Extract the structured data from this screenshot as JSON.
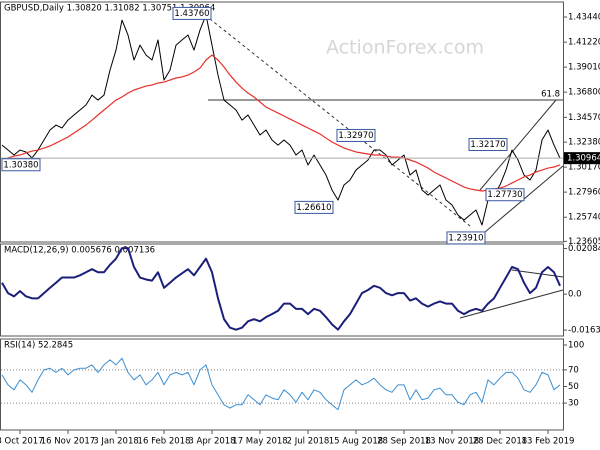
{
  "chart_data": [
    {
      "type": "line",
      "title": "GBPUSD,Daily 1.30820 1.31082 1.30751 1.30964",
      "watermark": "ActionForex.com",
      "ylim": [
        1.2355,
        1.4477
      ],
      "yticks": [
        {
          "value": 1.4344,
          "label": "1.43440"
        },
        {
          "value": 1.4122,
          "label": "1.41220"
        },
        {
          "value": 1.3901,
          "label": "1.39010"
        },
        {
          "value": 1.368,
          "label": "1.36800"
        },
        {
          "value": 1.3457,
          "label": "1.34570"
        },
        {
          "value": 1.3238,
          "label": "1.32380"
        },
        {
          "value": 1.3017,
          "label": "1.30170"
        },
        {
          "value": 1.2796,
          "label": "1.27960"
        },
        {
          "value": 1.2574,
          "label": "1.25740"
        },
        {
          "value": 1.23605,
          "label": "1.23605"
        }
      ],
      "last_price": {
        "value": 1.30964,
        "label": "1.30964"
      },
      "annotations": [
        {
          "value": 1.4376,
          "label": "1.43760"
        },
        {
          "value": 1.3297,
          "label": "1.32970"
        },
        {
          "value": 1.2661,
          "label": "1.26610"
        },
        {
          "value": 1.2391,
          "label": "1.23910"
        },
        {
          "value": 1.3217,
          "label": "1.32170"
        },
        {
          "value": 1.2773,
          "label": "1.27730"
        },
        {
          "value": 1.3038,
          "label": "1.30380"
        }
      ],
      "fib_label": 61.8,
      "series": [
        {
          "color": "#000000",
          "width": 1,
          "values": [
            1.3212,
            1.3168,
            1.3124,
            1.3168,
            1.3151,
            1.3098,
            1.3168,
            1.3257,
            1.3345,
            1.3389,
            1.3363,
            1.3433,
            1.3478,
            1.3522,
            1.3566,
            1.3654,
            1.361,
            1.3654,
            1.3875,
            1.4052,
            1.4317,
            1.4185,
            1.3964,
            1.4096,
            1.4008,
            1.3964,
            1.4141,
            1.3787,
            1.3875,
            1.4096,
            1.4141,
            1.4185,
            1.4052,
            1.4229,
            1.4362,
            1.4096,
            1.3831,
            1.361,
            1.3566,
            1.3522,
            1.3433,
            1.3478,
            1.3389,
            1.3301,
            1.3345,
            1.3257,
            1.3212,
            1.3257,
            1.3212,
            1.3124,
            1.3168,
            1.3036,
            1.3124,
            1.3036,
            1.2947,
            1.2815,
            1.2726,
            1.2859,
            1.2903,
            1.2991,
            1.3036,
            1.308,
            1.3168,
            1.3168,
            1.3124,
            1.3036,
            1.308,
            1.3124,
            1.2947,
            1.2991,
            1.2815,
            1.277,
            1.2815,
            1.2859,
            1.2726,
            1.2682,
            1.2594,
            1.2549,
            1.2594,
            1.2638,
            1.2505,
            1.2726,
            1.277,
            1.2859,
            1.2991,
            1.3168,
            1.308,
            1.2947,
            1.2903,
            1.2991,
            1.3257,
            1.3345,
            1.3212,
            1.3096
          ]
        },
        {
          "color": "#e8302c",
          "width": 1.2,
          "values": [
            1.308,
            1.3098,
            1.3115,
            1.3124,
            1.3142,
            1.3159,
            1.3168,
            1.3186,
            1.3204,
            1.323,
            1.3257,
            1.3283,
            1.3319,
            1.3354,
            1.3389,
            1.3433,
            1.3478,
            1.3522,
            1.3566,
            1.361,
            1.3637,
            1.3672,
            1.3699,
            1.3716,
            1.3734,
            1.3743,
            1.3761,
            1.3769,
            1.3787,
            1.3805,
            1.3814,
            1.3831,
            1.3858,
            1.3893,
            1.3964,
            1.4008,
            1.3964,
            1.3902,
            1.3831,
            1.3769,
            1.3716,
            1.3672,
            1.3637,
            1.3593,
            1.3548,
            1.3522,
            1.3495,
            1.3469,
            1.3442,
            1.3416,
            1.3389,
            1.3363,
            1.3336,
            1.331,
            1.3274,
            1.3239,
            1.3212,
            1.3186,
            1.3168,
            1.3151,
            1.3142,
            1.3133,
            1.3124,
            1.3124,
            1.3115,
            1.3106,
            1.3106,
            1.3098,
            1.308,
            1.3062,
            1.3036,
            1.3009,
            1.2974,
            1.2947,
            1.2921,
            1.2894,
            1.2868,
            1.2841,
            1.2824,
            1.2815,
            1.2806,
            1.2815,
            1.2824,
            1.2832,
            1.285,
            1.2877,
            1.2903,
            1.293,
            1.2947,
            1.2974,
            1.2991,
            1.3009,
            1.3018,
            1.3036
          ]
        }
      ]
    },
    {
      "type": "line",
      "title": "MACD(12,26,9) 0.005676 0.007136",
      "ylim": [
        -0.0191,
        0.0229
      ],
      "yticks": [
        0.020848,
        {
          "value": 0,
          "label": "0.0"
        },
        -0.016389
      ],
      "series": [
        {
          "color": "#1b1f7a",
          "width": 2,
          "values": [
            0.0052,
            0.0005,
            -0.001,
            0.0014,
            -0.001,
            -0.0019,
            -0.0019,
            0.0005,
            0.0029,
            0.0052,
            0.0076,
            0.0076,
            0.0076,
            0.0086,
            0.01,
            0.0114,
            0.01,
            0.01,
            0.0134,
            0.0162,
            0.021,
            0.021,
            0.0124,
            0.0076,
            0.0067,
            0.0062,
            0.01,
            0.0029,
            0.0052,
            0.0076,
            0.0095,
            0.0114,
            0.0086,
            0.0124,
            0.0162,
            0.01,
            -0.0019,
            -0.0114,
            -0.0153,
            -0.0162,
            -0.0153,
            -0.0124,
            -0.0114,
            -0.0124,
            -0.0105,
            -0.0091,
            -0.0076,
            -0.0043,
            -0.0043,
            -0.0067,
            -0.0067,
            -0.0091,
            -0.0067,
            -0.0076,
            -0.0105,
            -0.0138,
            -0.0162,
            -0.0124,
            -0.0091,
            -0.0043,
            0.0005,
            0.0019,
            0.0038,
            0.0029,
            0.0005,
            -0.0005,
            0.0005,
            0.0005,
            -0.0029,
            -0.0019,
            -0.0043,
            -0.0057,
            -0.0043,
            -0.0033,
            -0.0043,
            -0.0043,
            -0.0076,
            -0.0091,
            -0.0076,
            -0.0067,
            -0.0076,
            -0.0043,
            -0.0019,
            0.0029,
            0.0076,
            0.0124,
            0.0114,
            0.0052,
            0.0005,
            0.0029,
            0.01,
            0.0124,
            0.01,
            0.0038
          ]
        }
      ]
    },
    {
      "type": "line",
      "title": "RSI(14) 52.2845",
      "ylim": [
        -2.4,
        107.2
      ],
      "yticks": [
        100,
        70,
        50,
        30
      ],
      "levels": [
        70,
        30
      ],
      "categories": [
        null,
        null,
        null,
        "3 Oct 2017",
        null,
        null,
        null,
        null,
        null,
        null,
        null,
        "16 Nov 2017",
        null,
        null,
        null,
        null,
        null,
        null,
        null,
        "3 Jan 2018",
        null,
        null,
        null,
        null,
        null,
        null,
        null,
        "16 Feb 2018",
        null,
        null,
        null,
        null,
        null,
        null,
        null,
        "3 Apr 2018",
        null,
        null,
        null,
        null,
        null,
        null,
        null,
        "17 May 2018",
        null,
        null,
        null,
        null,
        null,
        null,
        null,
        "2 Jul 2018",
        null,
        null,
        null,
        null,
        null,
        null,
        null,
        "15 Aug 2018",
        null,
        null,
        null,
        null,
        null,
        null,
        null,
        "28 Sep 2018",
        null,
        null,
        null,
        null,
        null,
        null,
        null,
        "13 Nov 2018",
        null,
        null,
        null,
        null,
        null,
        null,
        null,
        "28 Dec 2018",
        null,
        null,
        null,
        null,
        null,
        null,
        null,
        "13 Feb 2019",
        null,
        null
      ],
      "series": [
        {
          "color": "#3d8fd1",
          "width": 1,
          "values": [
            64,
            52,
            46,
            58,
            52,
            43,
            58,
            70,
            72,
            67,
            72,
            64,
            70,
            72,
            72,
            76,
            67,
            76,
            82,
            76,
            84,
            67,
            58,
            64,
            52,
            58,
            67,
            52,
            64,
            67,
            64,
            67,
            52,
            70,
            76,
            52,
            40,
            28,
            24,
            28,
            28,
            40,
            34,
            28,
            40,
            36,
            34,
            46,
            40,
            31,
            43,
            34,
            46,
            43,
            34,
            28,
            22,
            46,
            52,
            58,
            52,
            55,
            60,
            52,
            46,
            43,
            52,
            52,
            34,
            46,
            34,
            36,
            46,
            48,
            40,
            40,
            31,
            28,
            40,
            43,
            31,
            58,
            52,
            60,
            67,
            67,
            60,
            46,
            43,
            52,
            67,
            64,
            46,
            52
          ]
        }
      ]
    }
  ]
}
